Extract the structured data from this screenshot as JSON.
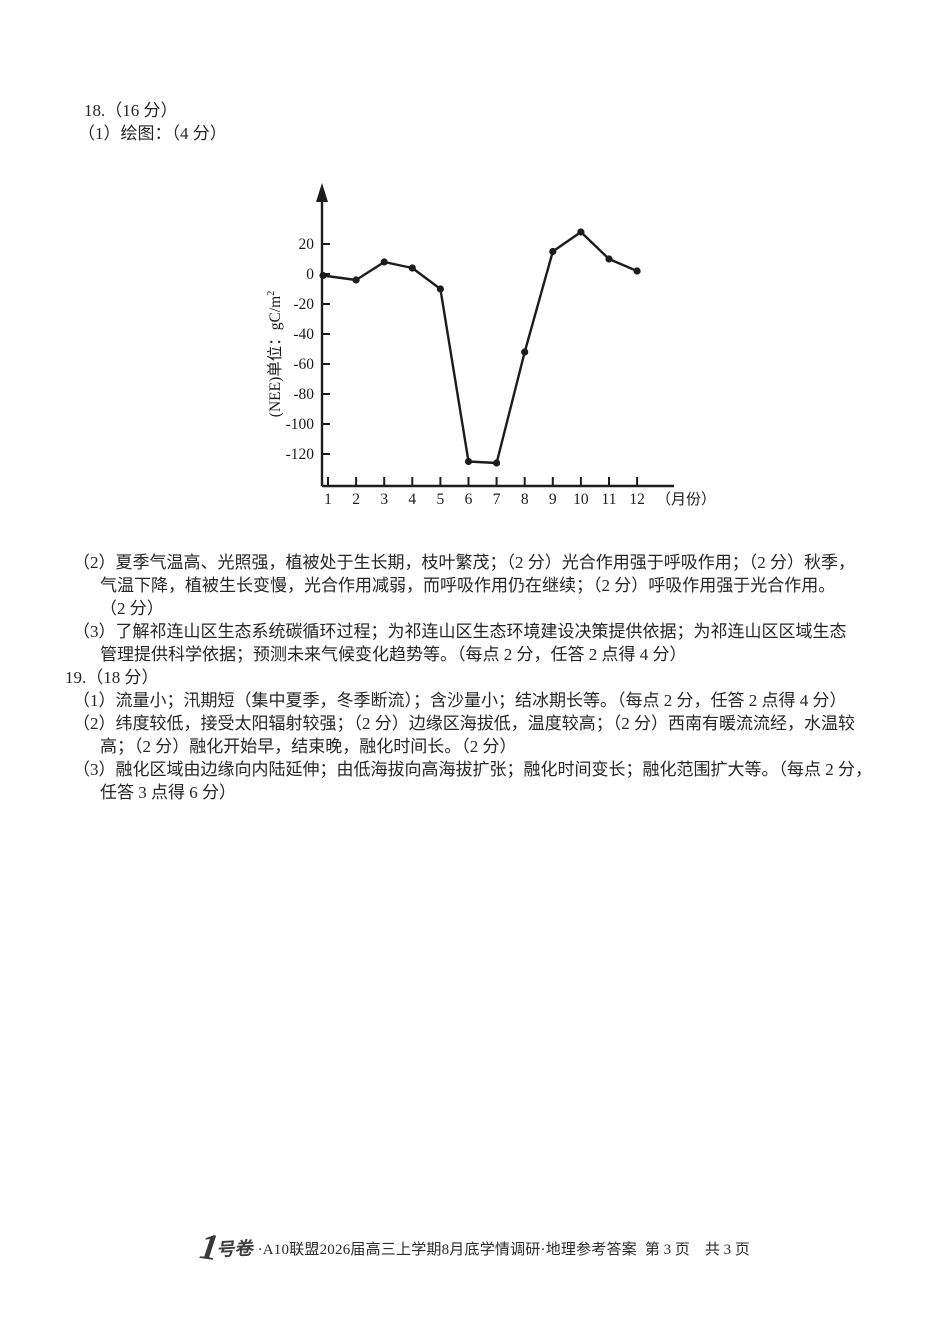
{
  "header": {
    "q18": "18.（16 分）",
    "q18_1": "（1）绘图：（4 分）"
  },
  "chart_data": {
    "type": "line",
    "title": "",
    "x": [
      1,
      2,
      3,
      4,
      5,
      6,
      7,
      8,
      9,
      10,
      11,
      12
    ],
    "values": [
      -1,
      -4,
      8,
      4,
      -10,
      -125,
      -126,
      -52,
      15,
      28,
      10,
      2
    ],
    "series_name": "NEE",
    "ylabel_main": "(NEE)单位：gC/m",
    "ylabel_sup": "2",
    "xlabel": "（月份）",
    "yticks": [
      20,
      0,
      -20,
      -40,
      -60,
      -80,
      -100,
      -120
    ],
    "ylim": [
      -140,
      40
    ],
    "xlim": [
      0,
      13
    ],
    "grid": "off",
    "legend": "none",
    "marker": "dot",
    "line_color": "#1c1c1c"
  },
  "answers": {
    "lines": [
      {
        "text": "（2）夏季气温高、光照强，植被处于生长期，枝叶繁茂；（2 分）光合作用强于呼吸作用；（2 分）秋季，",
        "indent": "c"
      },
      {
        "text": "气温下降，植被生长变慢，光合作用减弱，而呼吸作用仍在继续；（2 分）呼吸作用强于光合作用。",
        "indent": "d"
      },
      {
        "text": "（2 分）",
        "indent": "d"
      },
      {
        "text": "（3）了解祁连山区生态系统碳循环过程；为祁连山区生态环境建设决策提供依据；为祁连山区区域生态",
        "indent": "c"
      },
      {
        "text": "管理提供科学依据；预测未来气候变化趋势等。（每点 2 分，任答 2 点得 4 分）",
        "indent": "d"
      },
      {
        "text": "19.（18 分）",
        "indent": "e"
      },
      {
        "text": "（1）流量小；汛期短（集中夏季，冬季断流）；含沙量小；结冰期长等。（每点 2 分，任答 2 点得 4 分）",
        "indent": "c"
      },
      {
        "text": "（2）纬度较低，接受太阳辐射较强；（2 分）边缘区海拔低，温度较高；（2 分）西南有暖流流经，水温较",
        "indent": "c"
      },
      {
        "text": "高；（2 分）融化开始早，结束晚，融化时间长。（2 分）",
        "indent": "d"
      },
      {
        "text": "（3）融化区域由边缘向内陆延伸；由低海拔向高海拔扩张；融化时间变长；融化范围扩大等。（每点 2 分，",
        "indent": "c"
      },
      {
        "text": "任答 3 点得 6 分）",
        "indent": "d"
      }
    ]
  },
  "footer": {
    "logo_big": "1",
    "logo_small": "号卷",
    "text": "·A10联盟2026届高三上学期8月底学情调研·地理参考答案",
    "page": "第 3 页　共 3 页"
  }
}
